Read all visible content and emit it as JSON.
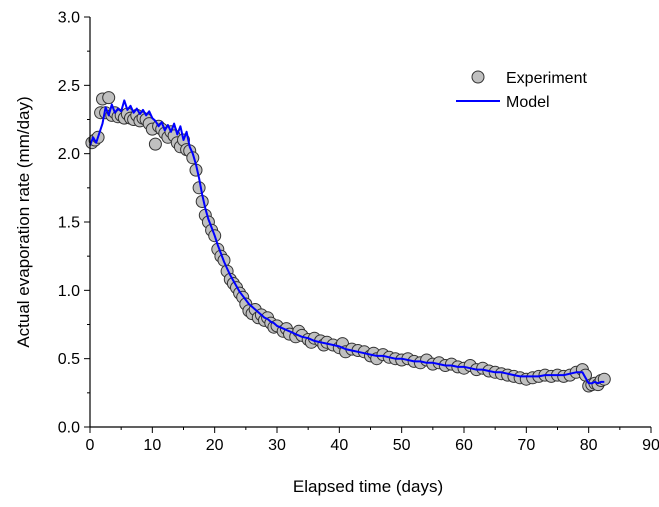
{
  "chart_data": {
    "type": "scatter",
    "xlabel": "Elapsed time (days)",
    "ylabel": "Actual evaporation rate (mm/day)",
    "xlim": [
      0,
      90
    ],
    "ylim": [
      0.0,
      3.0
    ],
    "x_ticks": [
      0,
      10,
      20,
      30,
      40,
      50,
      60,
      70,
      80,
      90
    ],
    "y_ticks": [
      0.0,
      0.5,
      1.0,
      1.5,
      2.0,
      2.5,
      3.0
    ],
    "x_tick_labels": [
      "0",
      "10",
      "20",
      "30",
      "40",
      "50",
      "60",
      "70",
      "80",
      "90"
    ],
    "y_tick_labels": [
      "0.0",
      "0.5",
      "1.0",
      "1.5",
      "2.0",
      "2.5",
      "3.0"
    ],
    "grid": false,
    "legend_position": "top-right",
    "series": [
      {
        "name": "Experiment",
        "kind": "markers",
        "color": "#c0c0c0",
        "edge_color": "#333333",
        "points": [
          [
            0.3,
            2.08
          ],
          [
            0.8,
            2.1
          ],
          [
            1.3,
            2.12
          ],
          [
            1.7,
            2.3
          ],
          [
            2.0,
            2.4
          ],
          [
            2.5,
            2.3
          ],
          [
            3.0,
            2.41
          ],
          [
            3.5,
            2.28
          ],
          [
            4.0,
            2.3
          ],
          [
            4.5,
            2.27
          ],
          [
            5.0,
            2.28
          ],
          [
            5.5,
            2.26
          ],
          [
            6.0,
            2.29
          ],
          [
            6.5,
            2.26
          ],
          [
            7.0,
            2.25
          ],
          [
            7.5,
            2.28
          ],
          [
            8.0,
            2.24
          ],
          [
            8.5,
            2.26
          ],
          [
            9.0,
            2.25
          ],
          [
            9.5,
            2.22
          ],
          [
            10.0,
            2.18
          ],
          [
            10.5,
            2.07
          ],
          [
            11.0,
            2.2
          ],
          [
            11.5,
            2.18
          ],
          [
            12.0,
            2.15
          ],
          [
            12.5,
            2.12
          ],
          [
            13.0,
            2.16
          ],
          [
            13.5,
            2.13
          ],
          [
            14.0,
            2.08
          ],
          [
            14.5,
            2.05
          ],
          [
            15.0,
            2.1
          ],
          [
            15.5,
            2.03
          ],
          [
            16.0,
            2.02
          ],
          [
            16.5,
            1.97
          ],
          [
            17.0,
            1.88
          ],
          [
            17.5,
            1.75
          ],
          [
            18.0,
            1.65
          ],
          [
            18.5,
            1.55
          ],
          [
            19.0,
            1.5
          ],
          [
            19.5,
            1.44
          ],
          [
            20.0,
            1.4
          ],
          [
            20.5,
            1.3
          ],
          [
            21.0,
            1.25
          ],
          [
            21.5,
            1.22
          ],
          [
            22.0,
            1.14
          ],
          [
            22.5,
            1.08
          ],
          [
            23.0,
            1.05
          ],
          [
            23.5,
            1.02
          ],
          [
            24.0,
            0.98
          ],
          [
            24.5,
            0.95
          ],
          [
            25.0,
            0.9
          ],
          [
            25.5,
            0.85
          ],
          [
            26.0,
            0.83
          ],
          [
            26.5,
            0.86
          ],
          [
            27.0,
            0.8
          ],
          [
            27.5,
            0.82
          ],
          [
            28.0,
            0.78
          ],
          [
            28.5,
            0.8
          ],
          [
            29.0,
            0.76
          ],
          [
            29.5,
            0.73
          ],
          [
            30.0,
            0.74
          ],
          [
            31.0,
            0.7
          ],
          [
            31.5,
            0.72
          ],
          [
            32.0,
            0.68
          ],
          [
            33.0,
            0.66
          ],
          [
            33.5,
            0.7
          ],
          [
            34.0,
            0.67
          ],
          [
            35.0,
            0.64
          ],
          [
            35.5,
            0.62
          ],
          [
            36.0,
            0.65
          ],
          [
            37.0,
            0.63
          ],
          [
            37.5,
            0.6
          ],
          [
            38.0,
            0.62
          ],
          [
            39.0,
            0.6
          ],
          [
            40.0,
            0.58
          ],
          [
            40.5,
            0.61
          ],
          [
            41.0,
            0.55
          ],
          [
            42.0,
            0.57
          ],
          [
            43.0,
            0.56
          ],
          [
            44.0,
            0.55
          ],
          [
            45.0,
            0.52
          ],
          [
            45.5,
            0.54
          ],
          [
            46.0,
            0.5
          ],
          [
            47.0,
            0.53
          ],
          [
            48.0,
            0.51
          ],
          [
            49.0,
            0.5
          ],
          [
            50.0,
            0.49
          ],
          [
            51.0,
            0.5
          ],
          [
            52.0,
            0.48
          ],
          [
            53.0,
            0.47
          ],
          [
            54.0,
            0.49
          ],
          [
            55.0,
            0.46
          ],
          [
            56.0,
            0.47
          ],
          [
            57.0,
            0.45
          ],
          [
            58.0,
            0.46
          ],
          [
            59.0,
            0.44
          ],
          [
            60.0,
            0.43
          ],
          [
            61.0,
            0.45
          ],
          [
            62.0,
            0.42
          ],
          [
            63.0,
            0.43
          ],
          [
            64.0,
            0.41
          ],
          [
            65.0,
            0.4
          ],
          [
            66.0,
            0.39
          ],
          [
            67.0,
            0.38
          ],
          [
            68.0,
            0.37
          ],
          [
            69.0,
            0.36
          ],
          [
            70.0,
            0.35
          ],
          [
            71.0,
            0.36
          ],
          [
            72.0,
            0.37
          ],
          [
            73.0,
            0.38
          ],
          [
            74.0,
            0.37
          ],
          [
            75.0,
            0.38
          ],
          [
            76.0,
            0.37
          ],
          [
            77.0,
            0.38
          ],
          [
            78.0,
            0.4
          ],
          [
            79.0,
            0.42
          ],
          [
            79.5,
            0.38
          ],
          [
            80.0,
            0.3
          ],
          [
            80.5,
            0.31
          ],
          [
            81.0,
            0.32
          ],
          [
            81.5,
            0.31
          ],
          [
            82.0,
            0.34
          ],
          [
            82.5,
            0.35
          ]
        ]
      },
      {
        "name": "Model",
        "kind": "line",
        "color": "#0000ff",
        "points": [
          [
            0.0,
            2.06
          ],
          [
            0.5,
            2.12
          ],
          [
            1.0,
            2.08
          ],
          [
            1.5,
            2.15
          ],
          [
            2.0,
            2.22
          ],
          [
            2.5,
            2.34
          ],
          [
            3.0,
            2.28
          ],
          [
            3.5,
            2.36
          ],
          [
            4.0,
            2.3
          ],
          [
            4.5,
            2.33
          ],
          [
            5.0,
            2.31
          ],
          [
            5.5,
            2.39
          ],
          [
            6.0,
            2.32
          ],
          [
            6.5,
            2.35
          ],
          [
            7.0,
            2.3
          ],
          [
            7.5,
            2.33
          ],
          [
            8.0,
            2.29
          ],
          [
            8.5,
            2.32
          ],
          [
            9.0,
            2.28
          ],
          [
            9.5,
            2.31
          ],
          [
            10.0,
            2.26
          ],
          [
            10.5,
            2.24
          ],
          [
            11.0,
            2.2
          ],
          [
            11.5,
            2.23
          ],
          [
            12.0,
            2.17
          ],
          [
            12.5,
            2.21
          ],
          [
            13.0,
            2.16
          ],
          [
            13.5,
            2.22
          ],
          [
            14.0,
            2.14
          ],
          [
            14.5,
            2.2
          ],
          [
            15.0,
            2.1
          ],
          [
            15.5,
            2.16
          ],
          [
            16.0,
            2.05
          ],
          [
            16.5,
            2.0
          ],
          [
            17.0,
            1.92
          ],
          [
            17.5,
            1.82
          ],
          [
            18.0,
            1.7
          ],
          [
            18.5,
            1.6
          ],
          [
            19.0,
            1.52
          ],
          [
            19.5,
            1.46
          ],
          [
            20.0,
            1.4
          ],
          [
            20.5,
            1.33
          ],
          [
            21.0,
            1.27
          ],
          [
            21.5,
            1.21
          ],
          [
            22.0,
            1.16
          ],
          [
            22.5,
            1.11
          ],
          [
            23.0,
            1.07
          ],
          [
            23.5,
            1.03
          ],
          [
            24.0,
            0.99
          ],
          [
            24.5,
            0.96
          ],
          [
            25.0,
            0.93
          ],
          [
            25.5,
            0.9
          ],
          [
            26.0,
            0.88
          ],
          [
            26.5,
            0.86
          ],
          [
            27.0,
            0.84
          ],
          [
            27.5,
            0.82
          ],
          [
            28.0,
            0.8
          ],
          [
            28.5,
            0.79
          ],
          [
            29.0,
            0.77
          ],
          [
            29.5,
            0.76
          ],
          [
            30.0,
            0.74
          ],
          [
            31.0,
            0.72
          ],
          [
            32.0,
            0.7
          ],
          [
            33.0,
            0.68
          ],
          [
            34.0,
            0.66
          ],
          [
            35.0,
            0.65
          ],
          [
            36.0,
            0.63
          ],
          [
            37.0,
            0.62
          ],
          [
            38.0,
            0.61
          ],
          [
            39.0,
            0.6
          ],
          [
            40.0,
            0.59
          ],
          [
            41.0,
            0.57
          ],
          [
            42.0,
            0.56
          ],
          [
            43.0,
            0.55
          ],
          [
            44.0,
            0.54
          ],
          [
            45.0,
            0.53
          ],
          [
            46.0,
            0.52
          ],
          [
            47.0,
            0.52
          ],
          [
            48.0,
            0.51
          ],
          [
            49.0,
            0.5
          ],
          [
            50.0,
            0.5
          ],
          [
            51.0,
            0.49
          ],
          [
            52.0,
            0.48
          ],
          [
            53.0,
            0.48
          ],
          [
            54.0,
            0.47
          ],
          [
            55.0,
            0.47
          ],
          [
            56.0,
            0.46
          ],
          [
            57.0,
            0.45
          ],
          [
            58.0,
            0.45
          ],
          [
            59.0,
            0.44
          ],
          [
            60.0,
            0.44
          ],
          [
            61.0,
            0.43
          ],
          [
            62.0,
            0.42
          ],
          [
            63.0,
            0.42
          ],
          [
            64.0,
            0.41
          ],
          [
            65.0,
            0.4
          ],
          [
            66.0,
            0.4
          ],
          [
            67.0,
            0.39
          ],
          [
            68.0,
            0.38
          ],
          [
            69.0,
            0.37
          ],
          [
            70.0,
            0.37
          ],
          [
            71.0,
            0.37
          ],
          [
            72.0,
            0.37
          ],
          [
            73.0,
            0.38
          ],
          [
            74.0,
            0.38
          ],
          [
            75.0,
            0.38
          ],
          [
            76.0,
            0.38
          ],
          [
            77.0,
            0.39
          ],
          [
            78.0,
            0.4
          ],
          [
            79.0,
            0.4
          ],
          [
            79.5,
            0.36
          ],
          [
            80.0,
            0.32
          ],
          [
            80.5,
            0.32
          ],
          [
            81.0,
            0.33
          ],
          [
            81.5,
            0.32
          ],
          [
            82.0,
            0.33
          ],
          [
            82.5,
            0.33
          ]
        ]
      }
    ]
  }
}
